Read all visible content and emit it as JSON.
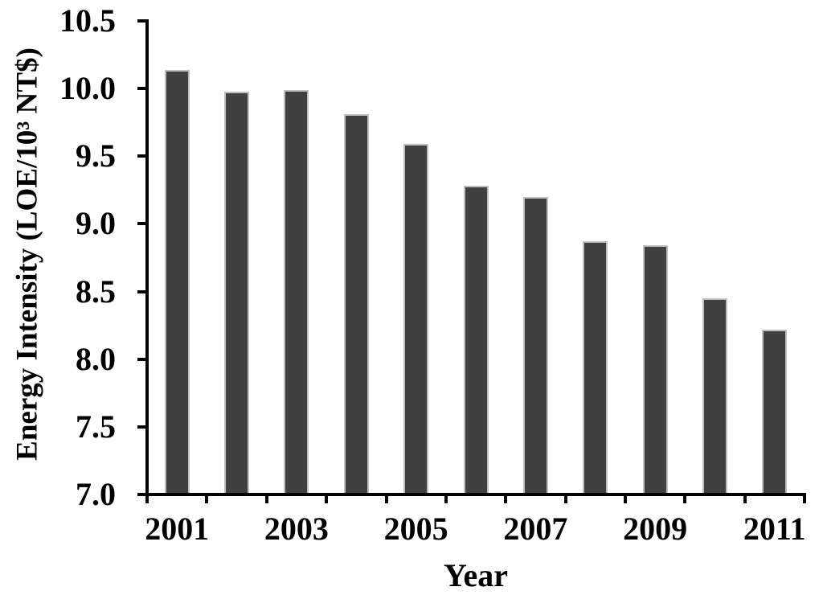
{
  "chart_data": {
    "type": "bar",
    "title": "",
    "xlabel": "Year",
    "ylabel": "Energy Intensity (LOE/10³ NT$)",
    "categories": [
      2001,
      2002,
      2003,
      2004,
      2005,
      2006,
      2007,
      2008,
      2009,
      2010,
      2011
    ],
    "values": [
      10.14,
      9.98,
      9.99,
      9.81,
      9.59,
      9.28,
      9.2,
      8.87,
      8.84,
      8.45,
      8.22
    ],
    "ylim": [
      7.0,
      10.5
    ],
    "ytick_step": 0.5,
    "ytick_labels": [
      "10.5",
      "10.0",
      "9.5",
      "9.0",
      "8.5",
      "8.0",
      "7.5",
      "7.0"
    ],
    "xtick_labels": [
      "2001",
      "2003",
      "2005",
      "2007",
      "2009",
      "2011"
    ],
    "xtick_label_every": 2,
    "grid": false,
    "legend": "none",
    "bar_fill_color": "#404040",
    "bar_border_color": "#bfbfbf",
    "axis_color": "#000000",
    "text_color": "#000000",
    "background_color": "#ffffff"
  }
}
